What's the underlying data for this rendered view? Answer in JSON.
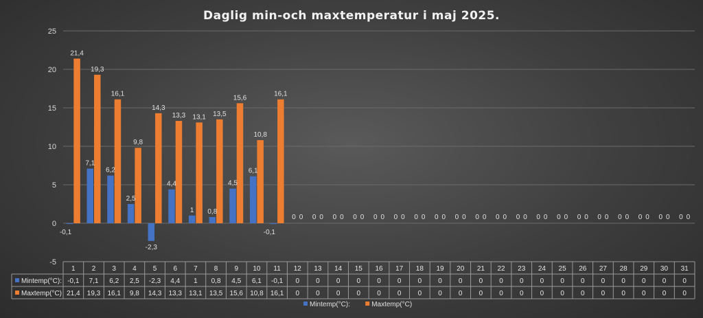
{
  "chart_data": {
    "type": "bar",
    "title": "Daglig min-och maxtemperatur i maj 2025.",
    "categories": [
      "1",
      "2",
      "3",
      "4",
      "5",
      "6",
      "7",
      "8",
      "9",
      "10",
      "11",
      "12",
      "13",
      "14",
      "15",
      "16",
      "17",
      "18",
      "19",
      "20",
      "21",
      "22",
      "23",
      "24",
      "25",
      "26",
      "27",
      "28",
      "29",
      "30",
      "31"
    ],
    "ylim": [
      -5,
      25
    ],
    "yticks": [
      -5,
      0,
      5,
      10,
      15,
      20,
      25
    ],
    "grid": true,
    "legend_position": "bottom",
    "data_table": true,
    "series": [
      {
        "name": "Mintemp(°C):",
        "color": "#4472C4",
        "values": [
          -0.1,
          7.1,
          6.2,
          2.5,
          -2.3,
          4.4,
          1,
          0.8,
          4.5,
          6.1,
          -0.1,
          0,
          0,
          0,
          0,
          0,
          0,
          0,
          0,
          0,
          0,
          0,
          0,
          0,
          0,
          0,
          0,
          0,
          0,
          0,
          0
        ],
        "labels": [
          "-0,1",
          "7,1",
          "6,2",
          "2,5",
          "-2,3",
          "4,4",
          "1",
          "0,8",
          "4,5",
          "6,1",
          "-0,1",
          "0",
          "0",
          "0",
          "0",
          "0",
          "0",
          "0",
          "0",
          "0",
          "0",
          "0",
          "0",
          "0",
          "0",
          "0",
          "0",
          "0",
          "0",
          "0",
          "0"
        ]
      },
      {
        "name": "Maxtemp(°C)",
        "color": "#ED7D31",
        "values": [
          21.4,
          19.3,
          16.1,
          9.8,
          14.3,
          13.3,
          13.1,
          13.5,
          15.6,
          10.8,
          16.1,
          0,
          0,
          0,
          0,
          0,
          0,
          0,
          0,
          0,
          0,
          0,
          0,
          0,
          0,
          0,
          0,
          0,
          0,
          0,
          0
        ],
        "labels": [
          "21,4",
          "19,3",
          "16,1",
          "9,8",
          "14,3",
          "13,3",
          "13,1",
          "13,5",
          "15,6",
          "10,8",
          "16,1",
          "0",
          "0",
          "0",
          "0",
          "0",
          "0",
          "0",
          "0",
          "0",
          "0",
          "0",
          "0",
          "0",
          "0",
          "0",
          "0",
          "0",
          "0",
          "0",
          "0"
        ]
      }
    ]
  }
}
